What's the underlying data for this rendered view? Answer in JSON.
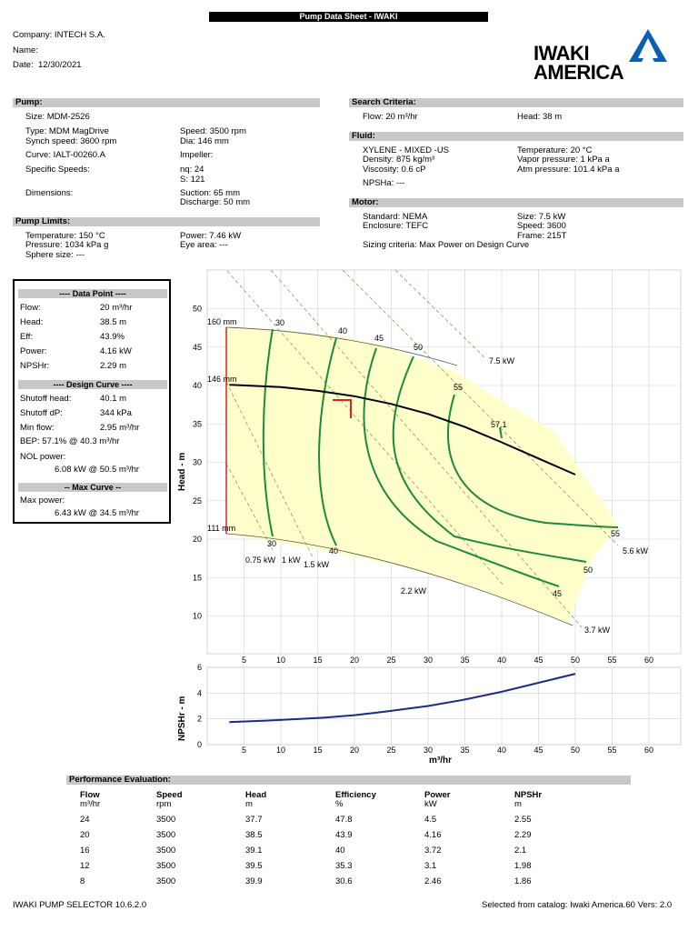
{
  "sheet_title": "Pump Data Sheet  -  IWAKI",
  "header": {
    "company": "Company: INTECH S.A.",
    "name": "Name:",
    "date_label": "Date:",
    "date": "12/30/2021"
  },
  "logo": {
    "line1": "IWAKI",
    "line2": "AMERICA",
    "color": "#0a5fb0"
  },
  "pump": {
    "section": "Pump:",
    "size": "Size:   MDM-2526",
    "type": "Type:   MDM MagDrive",
    "synch": "Synch speed:   3600 rpm",
    "speed": "Speed:  3500 rpm",
    "dia": "Dia:   146 mm",
    "curve": "Curve:   IALT-00260.A",
    "impeller": "Impeller:",
    "specific": "Specific Speeds:",
    "nq": "nq:   24",
    "s": "S:   121",
    "dimensions": "Dimensions:",
    "suction": "Suction:  65 mm",
    "discharge": "Discharge:   50 mm"
  },
  "limits": {
    "section": "Pump Limits:",
    "temperature": "Temperature:  150 °C",
    "pressure": "Pressure:   1034 kPa g",
    "sphere": "Sphere size:   ---",
    "power": "Power:  7.46 kW",
    "eye": "Eye area:   ---"
  },
  "search": {
    "section": "Search Criteria:",
    "flow": "Flow:  20 m³/hr",
    "head": "Head:   38 m"
  },
  "fluid": {
    "section": "Fluid:",
    "name": "XYLENE - MIXED -US",
    "density": "Density:  875 kg/m³",
    "viscosity": "Viscosity:  0.6 cP",
    "npsha": "NPSHa:   ---",
    "temperature": "Temperature:  20 °C",
    "vapor": "Vapor pressure:   1 kPa a",
    "atm": "Atm pressure:   101.4 kPa a"
  },
  "motor": {
    "section": "Motor:",
    "standard": "Standard:   NEMA",
    "enclosure": "Enclosure:   TEFC",
    "size": "Size:   7.5 kW",
    "speed": "Speed:   3600",
    "frame": "Frame:   215T",
    "sizing": "Sizing criteria:   Max Power on Design Curve"
  },
  "datapoint": {
    "title": "---- Data Point ----",
    "rows": [
      {
        "label": "Flow:",
        "value": "20 m³/hr"
      },
      {
        "label": "Head:",
        "value": "38.5 m"
      },
      {
        "label": "Eff:",
        "value": "43.9%"
      },
      {
        "label": "Power:",
        "value": "4.16 kW"
      },
      {
        "label": "NPSHr:",
        "value": "2.29 m"
      }
    ],
    "design_title": "---- Design Curve ----",
    "design_rows": [
      {
        "label": "Shutoff head:",
        "value": "40.1 m"
      },
      {
        "label": "Shutoff dP:",
        "value": "344 kPa"
      },
      {
        "label": "Min flow:",
        "value": "2.95 m³/hr"
      }
    ],
    "bep": "BEP:   57.1% @ 40.3 m³/hr",
    "nol_label": "NOL power:",
    "nol_value": "6.08 kW @ 50.5 m³/hr",
    "max_title": "-- Max Curve --",
    "max_label": "Max power:",
    "max_value": "6.43 kW @ 34.5 m³/hr"
  },
  "performance": {
    "section": "Performance Evaluation:",
    "headers": [
      "Flow",
      "Speed",
      "Head",
      "Efficiency",
      "Power",
      "NPSHr"
    ],
    "units": [
      "m³/hr",
      "rpm",
      "m",
      "%",
      "kW",
      "m"
    ],
    "rows": [
      [
        "24",
        "3500",
        "37.7",
        "47.8",
        "4.5",
        "2.55"
      ],
      [
        "20",
        "3500",
        "38.5",
        "43.9",
        "4.16",
        "2.29"
      ],
      [
        "16",
        "3500",
        "39.1",
        "40",
        "3.72",
        "2.1"
      ],
      [
        "12",
        "3500",
        "39.5",
        "35.3",
        "3.1",
        "1.98"
      ],
      [
        "8",
        "3500",
        "39.9",
        "30.6",
        "2.46",
        "1.86"
      ]
    ]
  },
  "footer": {
    "left": "IWAKI PUMP SELECTOR 10.6.2.0",
    "right": "Selected from catalog:  Iwaki America.60   Vers: 2.0"
  },
  "chart_data": [
    {
      "type": "line",
      "ylabel": "Head - m",
      "xlim": [
        0,
        65
      ],
      "ylim": [
        5,
        53
      ],
      "xticks": [
        5,
        10,
        15,
        20,
        25,
        30,
        35,
        40,
        45,
        50,
        55,
        60
      ],
      "yticks": [
        10,
        15,
        20,
        25,
        30,
        35,
        40,
        45,
        50
      ],
      "grid": true,
      "design_curve": {
        "x": [
          3,
          10,
          15,
          20,
          25,
          30,
          35,
          40,
          45,
          50
        ],
        "y": [
          40.1,
          39.8,
          39.3,
          38.6,
          37.6,
          36.3,
          34.6,
          32.6,
          30.5,
          28.4
        ]
      },
      "diameter_labels": [
        "160 mm",
        "146 mm",
        "111 mm"
      ],
      "efficiency_labels": [
        "30",
        "40",
        "45",
        "50",
        "55",
        "57.1",
        "55",
        "50",
        "45",
        "40",
        "30"
      ],
      "power_labels": [
        "7.5 kW",
        "5.6 kW",
        "3.7 kW",
        "2.2 kW",
        "1.5 kW",
        "0.75 kW",
        "1 kW"
      ],
      "duty_point": {
        "x": 20,
        "y": 38
      }
    },
    {
      "type": "line",
      "ylabel": "NPSHr - m",
      "xlabel": "m³/hr",
      "xlim": [
        0,
        65
      ],
      "ylim": [
        0,
        6
      ],
      "xticks": [
        5,
        10,
        15,
        20,
        25,
        30,
        35,
        40,
        45,
        50,
        55,
        60
      ],
      "yticks": [
        0,
        2,
        4,
        6
      ],
      "grid": true,
      "npshr_curve": {
        "x": [
          3,
          8,
          12,
          16,
          20,
          24,
          30,
          35,
          40,
          45,
          50
        ],
        "y": [
          1.75,
          1.86,
          1.98,
          2.1,
          2.29,
          2.55,
          3.0,
          3.5,
          4.1,
          4.8,
          5.5
        ]
      }
    }
  ]
}
